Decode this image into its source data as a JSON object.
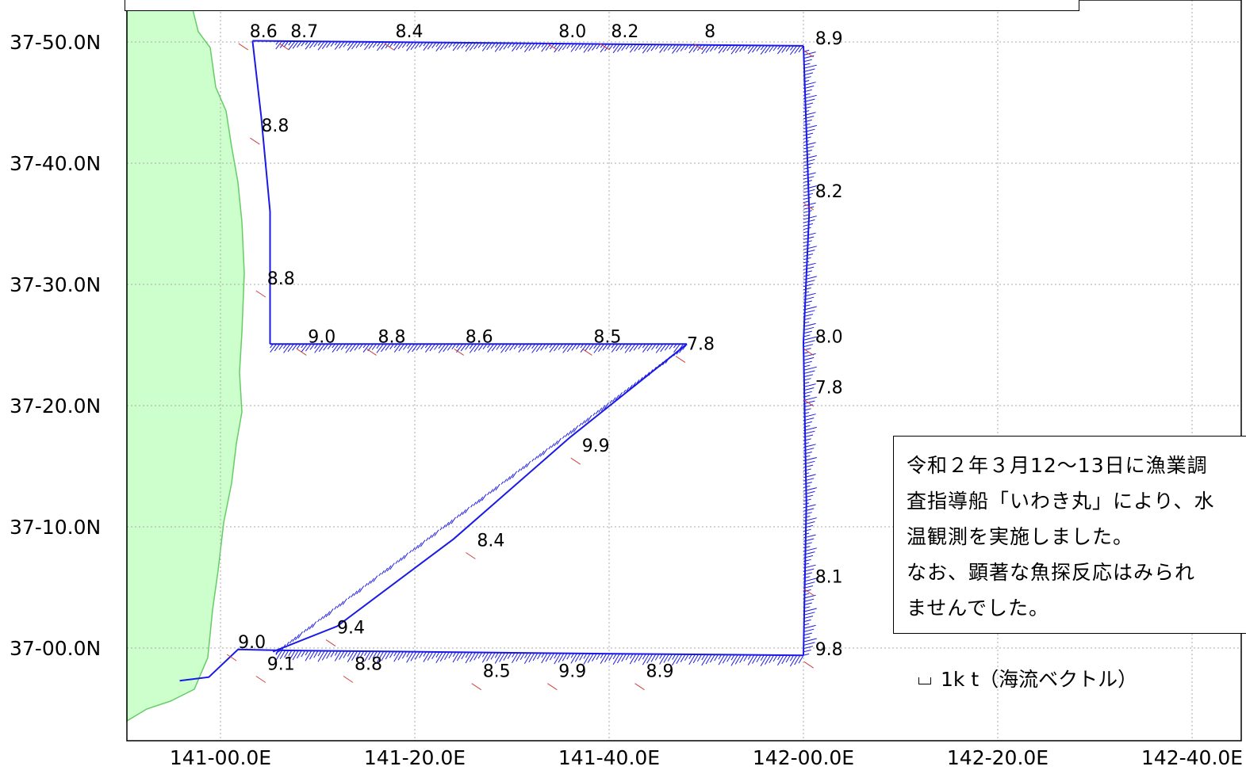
{
  "map": {
    "lon_ticks": [
      "141-00.0E",
      "141-20.0E",
      "141-40.0E",
      "142-00.0E",
      "142-20.0E",
      "142-40.0E"
    ],
    "lat_ticks": [
      "37-50.0N",
      "37-40.0N",
      "37-30.0N",
      "37-20.0N",
      "37-10.0N",
      "37-00.0N"
    ],
    "temperature_labels": [
      {
        "text": "8.6",
        "lon": 141.05,
        "lat": 37.84
      },
      {
        "text": "8.7",
        "lon": 141.12,
        "lat": 37.84
      },
      {
        "text": "8.4",
        "lon": 141.3,
        "lat": 37.84
      },
      {
        "text": "8.0",
        "lon": 141.58,
        "lat": 37.84
      },
      {
        "text": "8.2",
        "lon": 141.67,
        "lat": 37.84
      },
      {
        "text": "8",
        "lon": 141.83,
        "lat": 37.84
      },
      {
        "text": "8.9",
        "lon": 142.02,
        "lat": 37.83
      },
      {
        "text": "8.8",
        "lon": 141.07,
        "lat": 37.71
      },
      {
        "text": "8.2",
        "lon": 142.02,
        "lat": 37.62
      },
      {
        "text": "8.8",
        "lon": 141.08,
        "lat": 37.5
      },
      {
        "text": "9.0",
        "lon": 141.15,
        "lat": 37.42
      },
      {
        "text": "8.8",
        "lon": 141.27,
        "lat": 37.42
      },
      {
        "text": "8.6",
        "lon": 141.42,
        "lat": 37.42
      },
      {
        "text": "8.5",
        "lon": 141.64,
        "lat": 37.42
      },
      {
        "text": "7.8",
        "lon": 141.8,
        "lat": 37.41
      },
      {
        "text": "8.0",
        "lon": 142.02,
        "lat": 37.42
      },
      {
        "text": "7.8",
        "lon": 142.02,
        "lat": 37.35
      },
      {
        "text": "9.9",
        "lon": 141.62,
        "lat": 37.27
      },
      {
        "text": "8.4",
        "lon": 141.44,
        "lat": 37.14
      },
      {
        "text": "8.1",
        "lon": 142.02,
        "lat": 37.09
      },
      {
        "text": "9.4",
        "lon": 141.2,
        "lat": 37.02
      },
      {
        "text": "9.0",
        "lon": 141.03,
        "lat": 37.0
      },
      {
        "text": "9.1",
        "lon": 141.08,
        "lat": 36.97
      },
      {
        "text": "8.8",
        "lon": 141.23,
        "lat": 36.97
      },
      {
        "text": "8.5",
        "lon": 141.45,
        "lat": 36.96
      },
      {
        "text": "9.9",
        "lon": 141.58,
        "lat": 36.96
      },
      {
        "text": "8.9",
        "lon": 141.73,
        "lat": 36.96
      },
      {
        "text": "9.8",
        "lon": 142.02,
        "lat": 36.99
      }
    ]
  },
  "note": {
    "lines": [
      "令和２年３月12～13日に漁業調",
      "査指導船「いわき丸」により、水",
      "温観測を実施しました。",
      "なお、顕著な魚探反応はみられ",
      "ませんでした。"
    ]
  },
  "legend": {
    "scale_label": "1k t（海流ベクトル）"
  },
  "colors": {
    "land": "#ccffcc",
    "coast": "#66cc66",
    "track": "#1a1ae6",
    "grid": "#aaaaaa",
    "temperature_tick": "#d04040"
  }
}
